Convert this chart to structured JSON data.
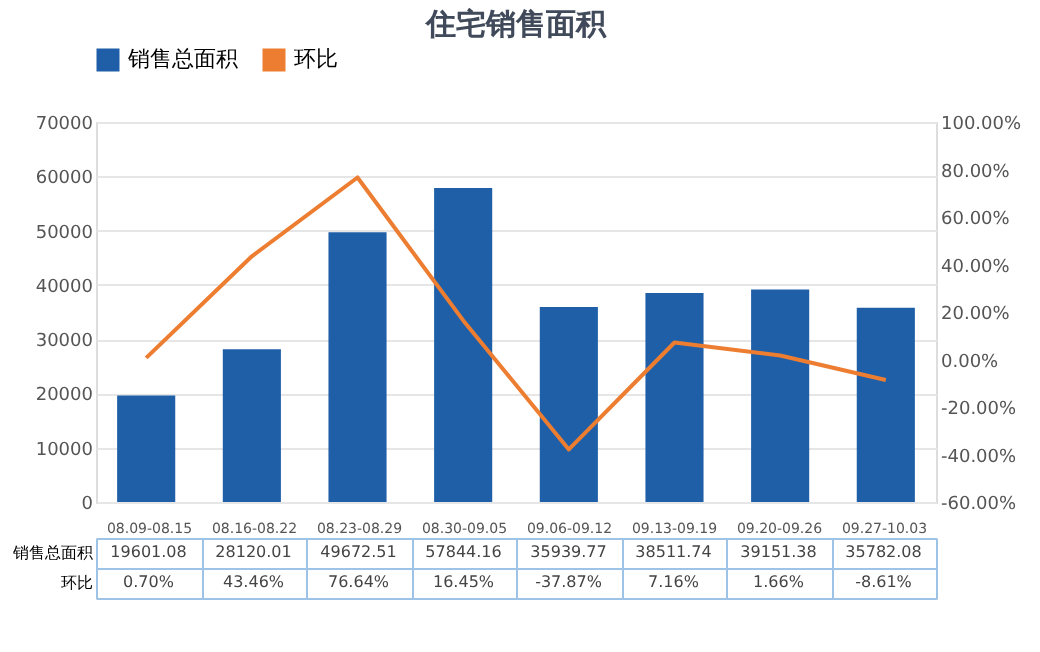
{
  "chart_data": {
    "type": "bar",
    "title": "住宅销售面积",
    "categories": [
      "08.09-08.15",
      "08.16-08.22",
      "08.23-08.29",
      "08.30-09.05",
      "09.06-09.12",
      "09.13-09.19",
      "09.20-09.26",
      "09.27-10.03"
    ],
    "series": [
      {
        "name": "销售总面积",
        "color": "#1f5fa8",
        "values": [
          19601.08,
          28120.01,
          49672.51,
          57844.16,
          35939.77,
          38511.74,
          39151.38,
          35782.08
        ]
      },
      {
        "name": "环比",
        "type": "line",
        "axis": "y2",
        "color": "#ed7d31",
        "values": [
          0.7,
          43.46,
          76.64,
          16.45,
          -37.87,
          7.16,
          1.66,
          -8.61
        ],
        "value_labels": [
          "0.70%",
          "43.46%",
          "76.64%",
          "16.45%",
          "-37.87%",
          "7.16%",
          "1.66%",
          "-8.61%"
        ]
      }
    ],
    "data_labels": true,
    "ylim": [
      0,
      70000
    ],
    "yticks": [
      0,
      10000,
      20000,
      30000,
      40000,
      50000,
      60000,
      70000
    ],
    "y2lim": [
      -60,
      100
    ],
    "y2ticks": [
      {
        "value": -60,
        "label": "-60.00%"
      },
      {
        "value": -40,
        "label": "-40.00%"
      },
      {
        "value": -20,
        "label": "-20.00%"
      },
      {
        "value": 0,
        "label": "0.00%"
      },
      {
        "value": 20,
        "label": "20.00%"
      },
      {
        "value": 40,
        "label": "40.00%"
      },
      {
        "value": 60,
        "label": "60.00%"
      },
      {
        "value": 80,
        "label": "80.00%"
      },
      {
        "value": 100,
        "label": "100.00%"
      }
    ],
    "grid": "y",
    "legend": "top",
    "marker": "none",
    "line_style": "solid"
  }
}
